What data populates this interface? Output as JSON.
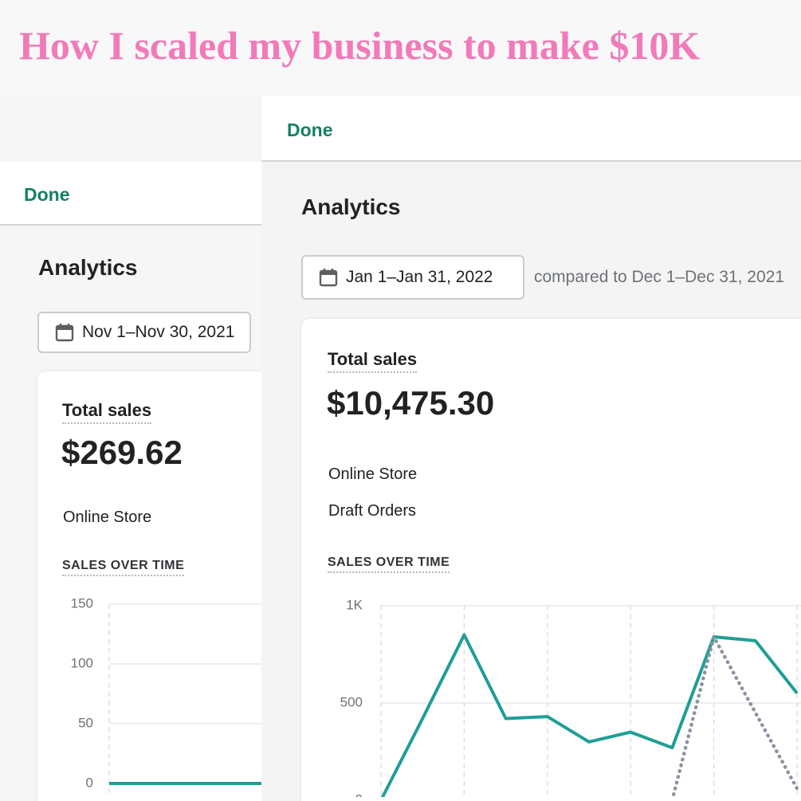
{
  "title": "How I scaled my business to make $10K",
  "panels": [
    {
      "done": "Done",
      "heading": "Analytics",
      "date_range": "Nov 1–Nov 30, 2021",
      "card": {
        "label": "Total sales",
        "amount": "$269.62",
        "channels": [
          "Online Store"
        ],
        "chart_label": "SALES OVER TIME"
      }
    },
    {
      "done": "Done",
      "heading": "Analytics",
      "date_range": "Jan 1–Jan 31, 2022",
      "comparison": "compared to Dec 1–Dec 31, 2021",
      "card": {
        "label": "Total sales",
        "amount": "$10,475.30",
        "channels": [
          "Online Store",
          "Draft Orders"
        ],
        "chart_label": "SALES OVER TIME"
      }
    }
  ],
  "chart_data": [
    {
      "type": "line",
      "ylim": [
        0,
        150
      ],
      "yticks": [
        0,
        50,
        100,
        150
      ],
      "grid": true,
      "series": [
        {
          "color": "#1f9e96",
          "style": "solid",
          "values": [
            0,
            0,
            0
          ]
        }
      ]
    },
    {
      "type": "line",
      "ylim": [
        0,
        1000
      ],
      "yticks": [
        0,
        500,
        {
          "value": 1000,
          "label": "1K"
        }
      ],
      "grid": true,
      "series": [
        {
          "color": "#1f9e96",
          "style": "solid",
          "values": [
            0,
            420,
            850,
            420,
            430,
            300,
            350,
            270,
            840,
            820,
            550
          ]
        },
        {
          "color": "#8a93a0",
          "style": "dotted",
          "values": [
            null,
            null,
            null,
            null,
            null,
            null,
            null,
            0,
            840,
            450,
            60
          ]
        }
      ]
    }
  ]
}
